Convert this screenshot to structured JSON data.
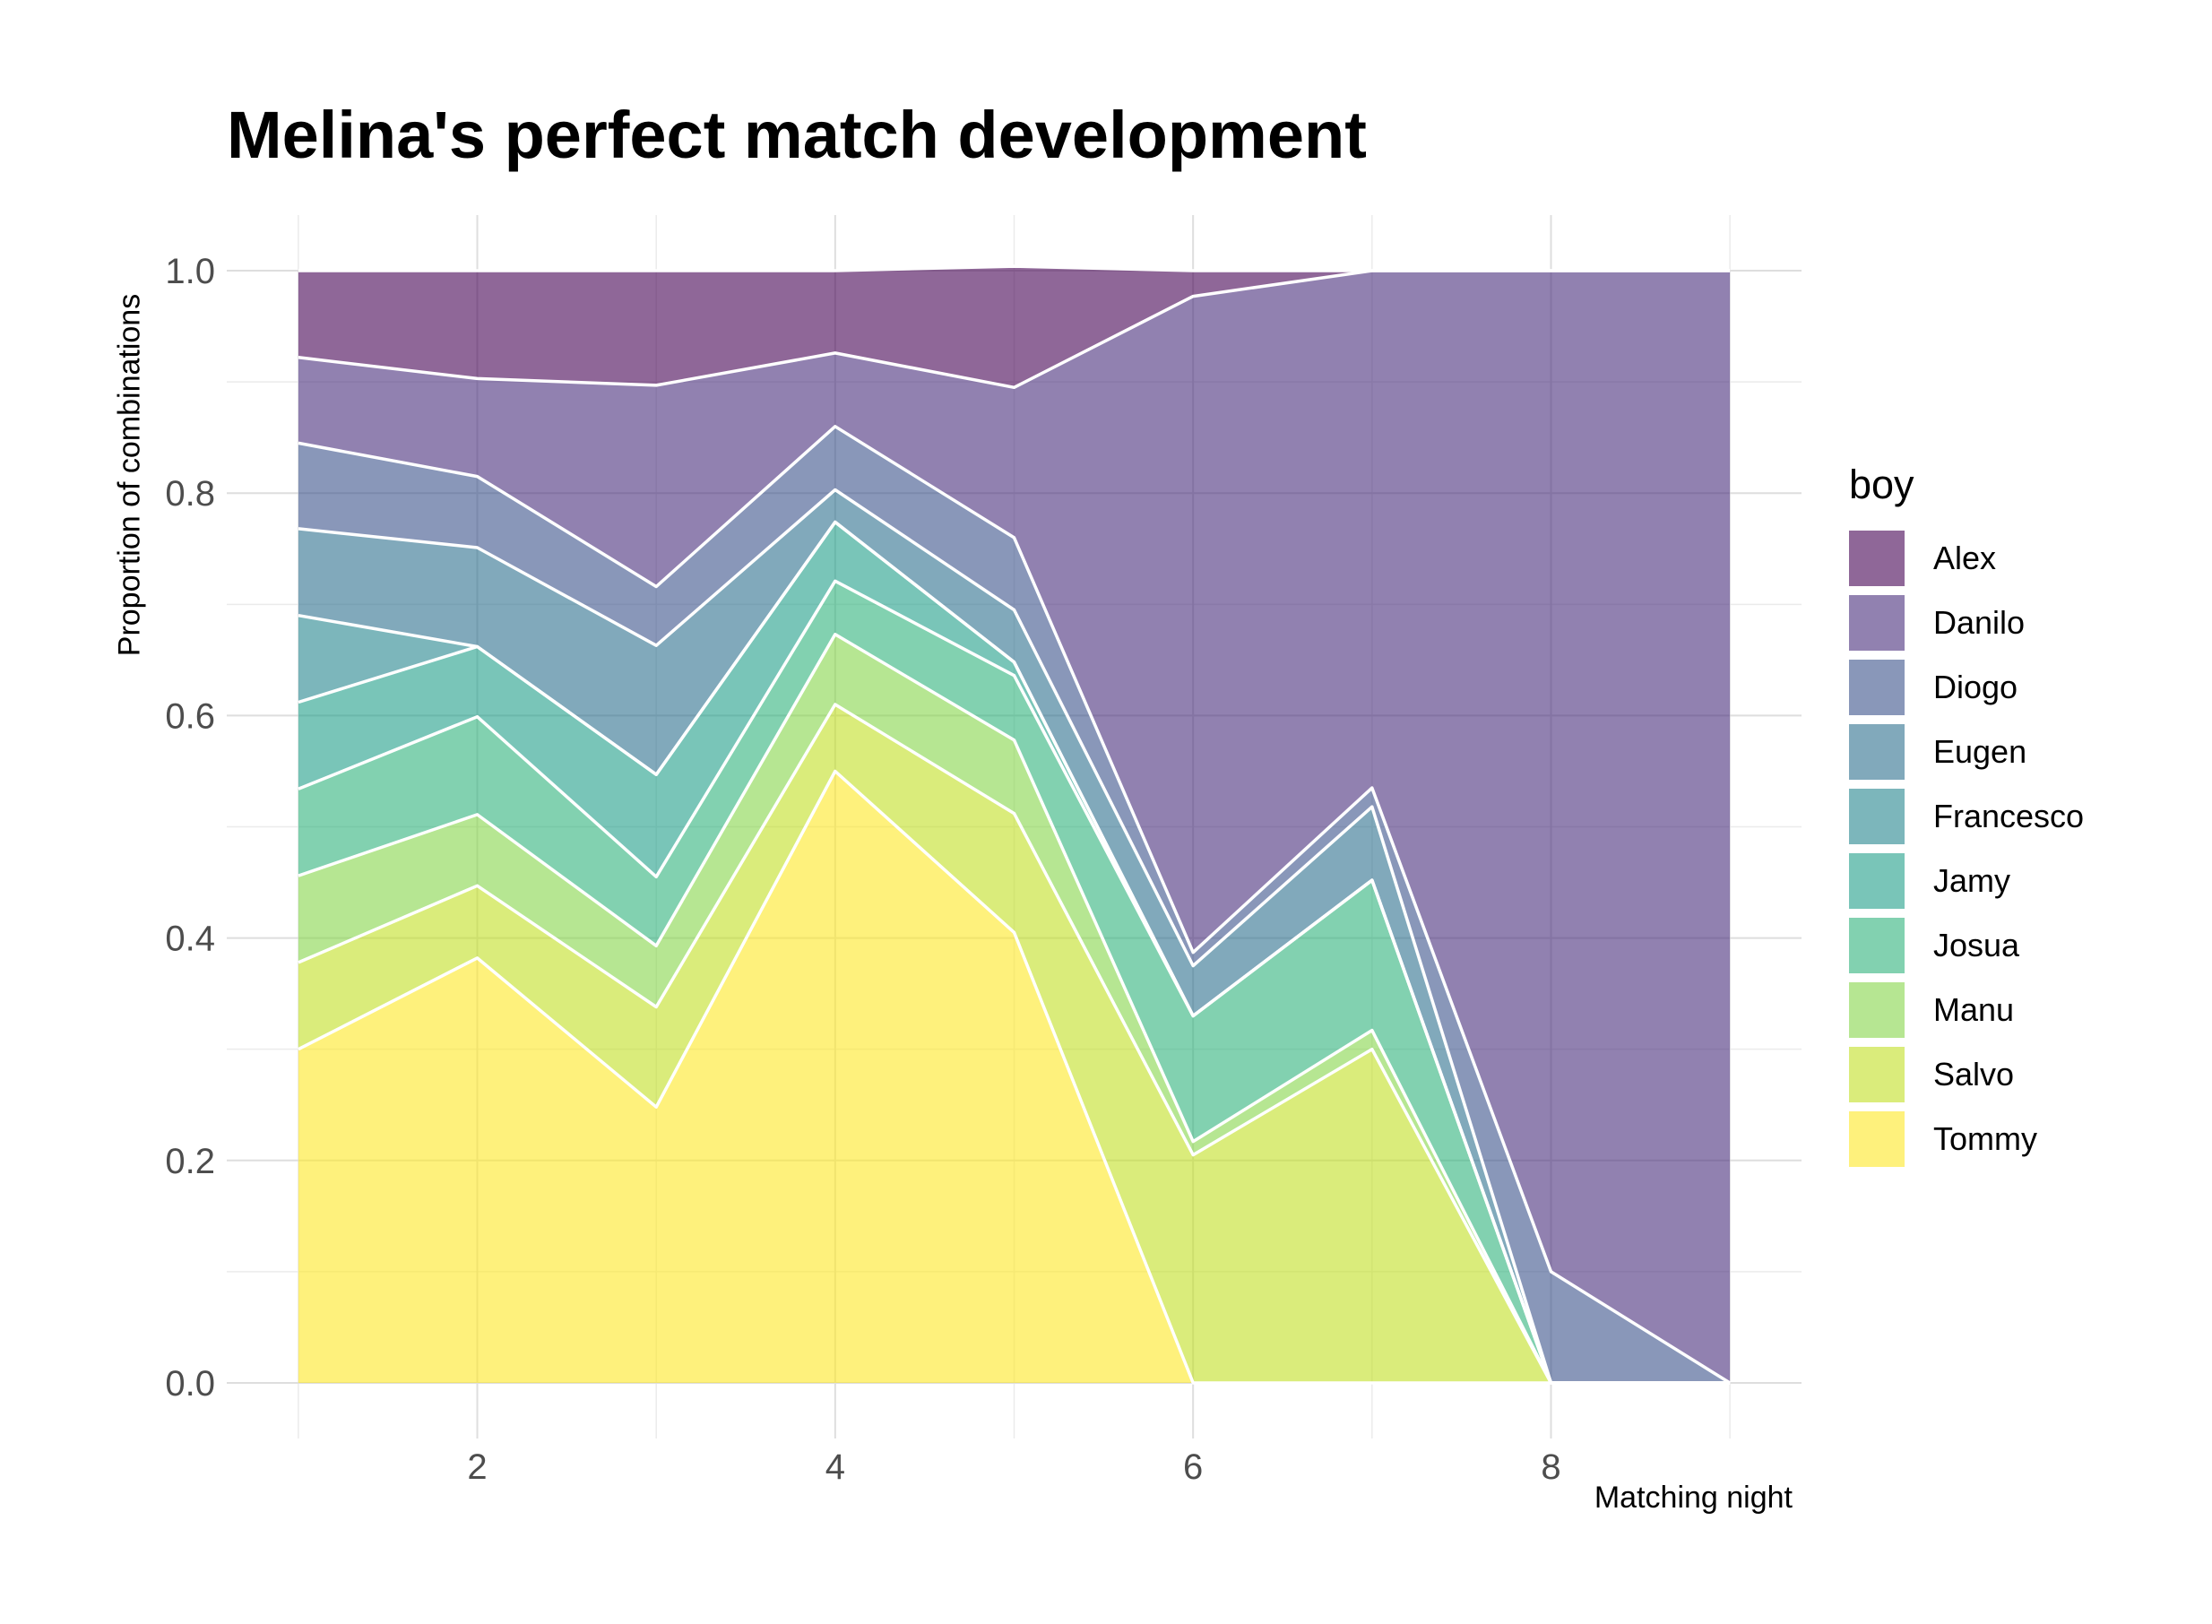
{
  "chart_data": {
    "type": "area",
    "title": "Melina's perfect match development",
    "xlabel": "Matching night",
    "ylabel": "Proportion of combinations",
    "x": [
      1,
      2,
      3,
      4,
      5,
      6,
      7,
      8,
      9
    ],
    "xlim": [
      0.6,
      9.4
    ],
    "ylim": [
      -0.05,
      1.05
    ],
    "x_ticks": [
      2,
      4,
      6,
      8
    ],
    "y_ticks": [
      0.0,
      0.2,
      0.4,
      0.6,
      0.8,
      1.0
    ],
    "y_tick_labels": [
      "0.0",
      "0.2",
      "0.4",
      "0.6",
      "0.8",
      "1.0"
    ],
    "stacked": true,
    "grid": true,
    "legend": {
      "title": "boy",
      "position": "right"
    },
    "series": [
      {
        "name": "Tommy",
        "color": "#FDE725",
        "values": [
          0.3,
          0.382,
          0.248,
          0.55,
          0.405,
          0.0,
          0.0,
          0.0,
          0.0
        ]
      },
      {
        "name": "Salvo",
        "color": "#C2DF23",
        "values": [
          0.078,
          0.065,
          0.09,
          0.06,
          0.107,
          0.205,
          0.3,
          0.0,
          0.0
        ]
      },
      {
        "name": "Manu",
        "color": "#86D549",
        "values": [
          0.078,
          0.064,
          0.055,
          0.063,
          0.066,
          0.012,
          0.017,
          0.0,
          0.0
        ]
      },
      {
        "name": "Josua",
        "color": "#2EB37C",
        "values": [
          0.078,
          0.088,
          0.062,
          0.048,
          0.058,
          0.113,
          0.135,
          0.0,
          0.0
        ]
      },
      {
        "name": "Jamy",
        "color": "#1F9E89",
        "values": [
          0.078,
          0.063,
          0.092,
          0.053,
          0.012,
          0.0,
          0.0,
          0.0,
          0.0
        ]
      },
      {
        "name": "Francesco",
        "color": "#25858E",
        "values": [
          0.078,
          0.0,
          0.0,
          0.0,
          0.0,
          0.0,
          0.0,
          0.0,
          0.0
        ]
      },
      {
        "name": "Eugen",
        "color": "#2D708E",
        "values": [
          0.078,
          0.089,
          0.116,
          0.029,
          0.047,
          0.045,
          0.066,
          0.0,
          0.0
        ]
      },
      {
        "name": "Diogo",
        "color": "#3B528B",
        "values": [
          0.077,
          0.064,
          0.053,
          0.057,
          0.065,
          0.012,
          0.017,
          0.1,
          0.0
        ]
      },
      {
        "name": "Danilo",
        "color": "#472D7B",
        "values": [
          0.077,
          0.088,
          0.181,
          0.066,
          0.135,
          0.59,
          0.465,
          0.9,
          1.0
        ]
      },
      {
        "name": "Alex",
        "color": "#440154",
        "values": [
          0.078,
          0.097,
          0.103,
          0.074,
          0.109,
          0.023,
          0.0,
          0.0,
          0.0
        ]
      }
    ],
    "fill_opacity": 0.6,
    "line_color": "#FFFFFF"
  }
}
